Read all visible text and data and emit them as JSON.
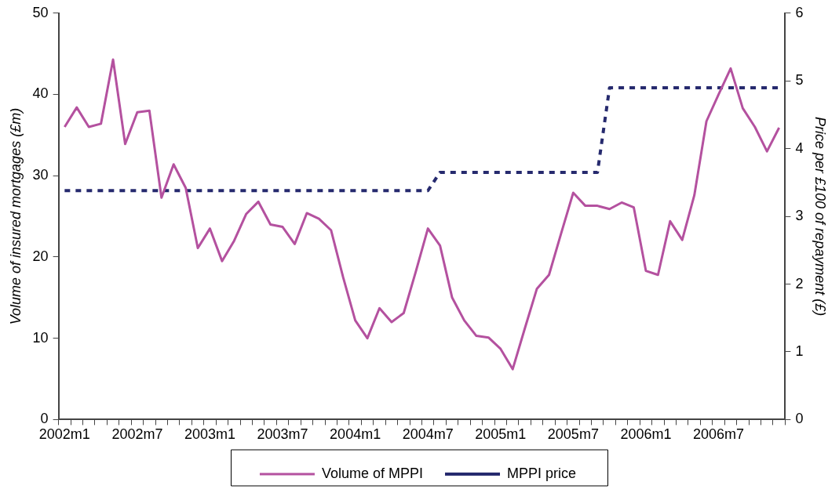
{
  "chart_data": {
    "type": "line",
    "categories": [
      "2002m1",
      null,
      null,
      null,
      null,
      null,
      "2002m7",
      null,
      null,
      null,
      null,
      null,
      "2003m1",
      null,
      null,
      null,
      null,
      null,
      "2003m7",
      null,
      null,
      null,
      null,
      null,
      "2004m1",
      null,
      null,
      null,
      null,
      null,
      "2004m7",
      null,
      null,
      null,
      null,
      null,
      "2005m1",
      null,
      null,
      null,
      null,
      null,
      "2005m7",
      null,
      null,
      null,
      null,
      null,
      "2006m1",
      null,
      null,
      null,
      null,
      null,
      "2006m7",
      null,
      null,
      null,
      null,
      null
    ],
    "series": [
      {
        "name": "Volume of MPPI",
        "color": "#b4519f",
        "line_style": "solid",
        "values": [
          36.0,
          38.4,
          36.0,
          36.4,
          44.3,
          33.9,
          37.8,
          38.0,
          27.3,
          31.4,
          28.5,
          21.1,
          23.5,
          19.5,
          22.0,
          25.3,
          26.8,
          24.0,
          23.7,
          21.6,
          25.4,
          24.7,
          23.3,
          17.5,
          12.2,
          10.0,
          13.7,
          12.0,
          13.1,
          18.2,
          23.5,
          21.4,
          15.0,
          12.2,
          10.3,
          10.1,
          8.7,
          6.2,
          11.2,
          16.1,
          17.8,
          22.9,
          27.9,
          26.3,
          26.3,
          25.9,
          26.7,
          26.1,
          18.3,
          17.8,
          24.4,
          22.1,
          27.6,
          36.7,
          40.0,
          43.2,
          38.3,
          36.0,
          33.0,
          35.9
        ]
      },
      {
        "name": "MPPI price",
        "color": "#262a6e",
        "line_style": "dashed",
        "axis": "y2",
        "values": [
          3.38,
          3.38,
          3.38,
          3.38,
          3.38,
          3.38,
          3.38,
          3.38,
          3.38,
          3.38,
          3.38,
          3.38,
          3.38,
          3.38,
          3.38,
          3.38,
          3.38,
          3.38,
          3.38,
          3.38,
          3.38,
          3.38,
          3.38,
          3.38,
          3.38,
          3.38,
          3.38,
          3.38,
          3.38,
          3.38,
          3.38,
          3.65,
          3.65,
          3.65,
          3.65,
          3.65,
          3.65,
          3.65,
          3.65,
          3.65,
          3.65,
          3.65,
          3.65,
          3.65,
          3.65,
          4.9,
          4.9,
          4.9,
          4.9,
          4.9,
          4.9,
          4.9,
          4.9,
          4.9,
          4.9,
          4.9,
          4.9,
          4.9,
          4.9,
          4.9
        ]
      }
    ],
    "ylabel": "Volume of insured mortgages (£m)",
    "y2label": "Price per £100 of repayment (£)",
    "ylim": [
      0,
      50
    ],
    "yticks": [
      0,
      10,
      20,
      30,
      40,
      50
    ],
    "y2lim": [
      0,
      6
    ],
    "y2ticks": [
      0,
      1,
      2,
      3,
      4,
      5,
      6
    ],
    "grid": false,
    "legend": "bottom",
    "marker": "none"
  }
}
